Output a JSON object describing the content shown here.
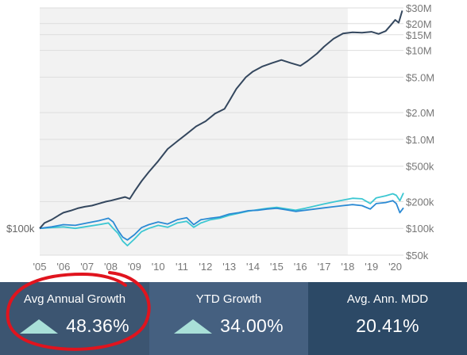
{
  "chart_data": {
    "type": "line",
    "y_scale": "log",
    "ylim": [
      50000,
      30000000
    ],
    "y_ticks_right": [
      "$30M",
      "$20M",
      "$15M",
      "$10M",
      "$5.0M",
      "$2.0M",
      "$1.0M",
      "$500k",
      "$200k",
      "$100k",
      "$50k"
    ],
    "y_tick_values": [
      30000000,
      20000000,
      15000000,
      10000000,
      5000000,
      2000000,
      1000000,
      500000,
      200000,
      100000,
      50000
    ],
    "x_ticks": [
      "'05",
      "'06",
      "'07",
      "'08",
      "'09",
      "'10",
      "'11",
      "'12",
      "'13",
      "'14",
      "'15",
      "'16",
      "'17",
      "'18",
      "'19",
      "'20"
    ],
    "x_tick_values": [
      2005,
      2006,
      2007,
      2008,
      2009,
      2010,
      2011,
      2012,
      2013,
      2014,
      2015,
      2016,
      2017,
      2018,
      2019,
      2020
    ],
    "xlim": [
      2005,
      2020.35
    ],
    "shaded_until": 2018,
    "start_label": "$100k",
    "start_value": 100000,
    "grid": true,
    "series": [
      {
        "color": "#34475e",
        "points": [
          [
            2005.0,
            100000
          ],
          [
            2005.2,
            115000
          ],
          [
            2005.5,
            125000
          ],
          [
            2005.8,
            140000
          ],
          [
            2006.0,
            150000
          ],
          [
            2006.3,
            158000
          ],
          [
            2006.6,
            168000
          ],
          [
            2006.9,
            175000
          ],
          [
            2007.2,
            180000
          ],
          [
            2007.5,
            190000
          ],
          [
            2007.8,
            200000
          ],
          [
            2008.0,
            205000
          ],
          [
            2008.3,
            215000
          ],
          [
            2008.6,
            225000
          ],
          [
            2008.8,
            215000
          ],
          [
            2009.0,
            260000
          ],
          [
            2009.3,
            340000
          ],
          [
            2009.6,
            430000
          ],
          [
            2010.0,
            570000
          ],
          [
            2010.4,
            780000
          ],
          [
            2010.8,
            950000
          ],
          [
            2011.2,
            1150000
          ],
          [
            2011.6,
            1400000
          ],
          [
            2012.0,
            1600000
          ],
          [
            2012.4,
            1950000
          ],
          [
            2012.8,
            2200000
          ],
          [
            2013.0,
            2700000
          ],
          [
            2013.3,
            3700000
          ],
          [
            2013.7,
            5000000
          ],
          [
            2014.0,
            5800000
          ],
          [
            2014.4,
            6600000
          ],
          [
            2014.8,
            7200000
          ],
          [
            2015.2,
            7800000
          ],
          [
            2015.6,
            7200000
          ],
          [
            2016.0,
            6700000
          ],
          [
            2016.3,
            7600000
          ],
          [
            2016.7,
            9200000
          ],
          [
            2017.0,
            11000000
          ],
          [
            2017.4,
            13500000
          ],
          [
            2017.8,
            15500000
          ],
          [
            2018.2,
            16000000
          ],
          [
            2018.6,
            15800000
          ],
          [
            2019.0,
            16200000
          ],
          [
            2019.3,
            15300000
          ],
          [
            2019.6,
            16500000
          ],
          [
            2019.8,
            19000000
          ],
          [
            2020.0,
            22000000
          ],
          [
            2020.15,
            20500000
          ],
          [
            2020.3,
            28000000
          ]
        ]
      },
      {
        "color": "#2b8ad4",
        "points": [
          [
            2005.0,
            100000
          ],
          [
            2005.5,
            104000
          ],
          [
            2006.0,
            110000
          ],
          [
            2006.5,
            108000
          ],
          [
            2007.0,
            115000
          ],
          [
            2007.5,
            122000
          ],
          [
            2007.9,
            130000
          ],
          [
            2008.1,
            118000
          ],
          [
            2008.3,
            95000
          ],
          [
            2008.5,
            80000
          ],
          [
            2008.7,
            74000
          ],
          [
            2009.0,
            85000
          ],
          [
            2009.3,
            102000
          ],
          [
            2009.6,
            110000
          ],
          [
            2010.0,
            118000
          ],
          [
            2010.4,
            112000
          ],
          [
            2010.8,
            125000
          ],
          [
            2011.2,
            132000
          ],
          [
            2011.5,
            110000
          ],
          [
            2011.8,
            125000
          ],
          [
            2012.2,
            130000
          ],
          [
            2012.6,
            134000
          ],
          [
            2013.0,
            145000
          ],
          [
            2013.4,
            150000
          ],
          [
            2013.8,
            158000
          ],
          [
            2014.2,
            160000
          ],
          [
            2014.6,
            165000
          ],
          [
            2015.0,
            168000
          ],
          [
            2015.4,
            162000
          ],
          [
            2015.8,
            155000
          ],
          [
            2016.2,
            160000
          ],
          [
            2016.6,
            165000
          ],
          [
            2017.0,
            170000
          ],
          [
            2017.4,
            175000
          ],
          [
            2017.8,
            180000
          ],
          [
            2018.2,
            185000
          ],
          [
            2018.6,
            180000
          ],
          [
            2018.95,
            165000
          ],
          [
            2019.2,
            190000
          ],
          [
            2019.6,
            195000
          ],
          [
            2019.9,
            205000
          ],
          [
            2020.05,
            190000
          ],
          [
            2020.2,
            150000
          ],
          [
            2020.35,
            170000
          ]
        ]
      },
      {
        "color": "#3cc7d2",
        "points": [
          [
            2005.0,
            100000
          ],
          [
            2005.5,
            102000
          ],
          [
            2006.0,
            104000
          ],
          [
            2006.5,
            100000
          ],
          [
            2007.0,
            105000
          ],
          [
            2007.5,
            110000
          ],
          [
            2007.9,
            115000
          ],
          [
            2008.1,
            100000
          ],
          [
            2008.3,
            88000
          ],
          [
            2008.5,
            72000
          ],
          [
            2008.7,
            64000
          ],
          [
            2009.0,
            76000
          ],
          [
            2009.3,
            92000
          ],
          [
            2009.6,
            100000
          ],
          [
            2010.0,
            108000
          ],
          [
            2010.4,
            103000
          ],
          [
            2010.8,
            115000
          ],
          [
            2011.2,
            120000
          ],
          [
            2011.5,
            103000
          ],
          [
            2011.8,
            115000
          ],
          [
            2012.2,
            125000
          ],
          [
            2012.6,
            130000
          ],
          [
            2013.0,
            140000
          ],
          [
            2013.4,
            148000
          ],
          [
            2013.8,
            156000
          ],
          [
            2014.2,
            162000
          ],
          [
            2014.6,
            168000
          ],
          [
            2015.0,
            172000
          ],
          [
            2015.4,
            166000
          ],
          [
            2015.8,
            160000
          ],
          [
            2016.2,
            168000
          ],
          [
            2016.6,
            178000
          ],
          [
            2017.0,
            188000
          ],
          [
            2017.4,
            198000
          ],
          [
            2017.8,
            208000
          ],
          [
            2018.2,
            218000
          ],
          [
            2018.6,
            215000
          ],
          [
            2018.95,
            190000
          ],
          [
            2019.2,
            220000
          ],
          [
            2019.6,
            232000
          ],
          [
            2019.9,
            245000
          ],
          [
            2020.05,
            235000
          ],
          [
            2020.2,
            205000
          ],
          [
            2020.35,
            250000
          ]
        ]
      }
    ]
  },
  "stats": [
    {
      "label": "Avg Annual Growth",
      "value": "48.36%",
      "arrow": "up",
      "bg": "#3c5571"
    },
    {
      "label": "YTD Growth",
      "value": "34.00%",
      "arrow": "up",
      "bg": "#456080"
    },
    {
      "label": "Avg. Ann. MDD",
      "value": "20.41%",
      "arrow": "none",
      "bg": "#2c4966"
    }
  ],
  "colors": {
    "plot_shade": "#f2f2f2",
    "grid": "#dddddd",
    "tick_text": "#777777",
    "arrow": "#a9e0d8",
    "highlight_circle": "#e0141e"
  }
}
